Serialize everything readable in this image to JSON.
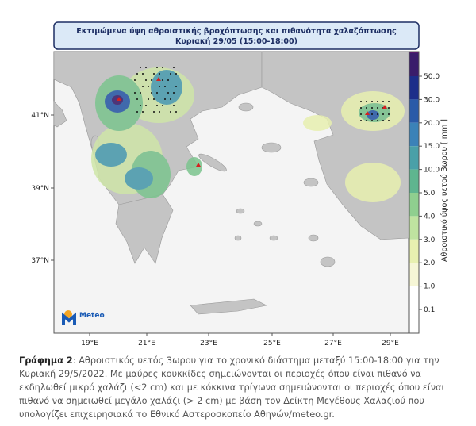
{
  "title": {
    "line1": "Εκτιμώμενα ύψη αθροιστικής βροχόπτωσης και πιθανότητα χαλαζόπτωσης",
    "line2": "Κυριακή 29/05 (15:00-18:00)"
  },
  "latitudes": [
    "41°N",
    "39°N",
    "37°N"
  ],
  "longitudes": [
    "19°E",
    "21°E",
    "23°E",
    "25°E",
    "27°E",
    "29°E"
  ],
  "colorbar": {
    "label": "Αθροιστικό ύψος υετού 3ωρου [ mm ]",
    "ticks": [
      "50.0",
      "30.0",
      "20.0",
      "15.0",
      "10.0",
      "5.0",
      "4.0",
      "3.0",
      "2.0",
      "1.0",
      "0.1"
    ]
  },
  "logo": "Meteo",
  "caption": {
    "label": "Γράφημα 2",
    "text": ": Αθροιστικός υετός 3ωρου για το χρονικό διάστημα μεταξύ 15:00-18:00 για την Κυριακή 29/5/2022. Με μαύρες κουκκίδες σημειώνονται οι περιοχές όπου είναι πιθανό να εκδηλωθεί μικρό χαλάζι (<2 cm) και με κόκκινα τρίγωνα σημειώνονται οι περιοχές όπου είναι πιθανό να σημειωθεί μεγάλο χαλάζι (> 2 cm) με βάση τον Δείκτη Μεγέθους Χαλαζιού που υπολογίζει επιχειρησιακά το Εθνικό Αστεροσκοπείο Αθηνών/meteo.gr."
  }
}
